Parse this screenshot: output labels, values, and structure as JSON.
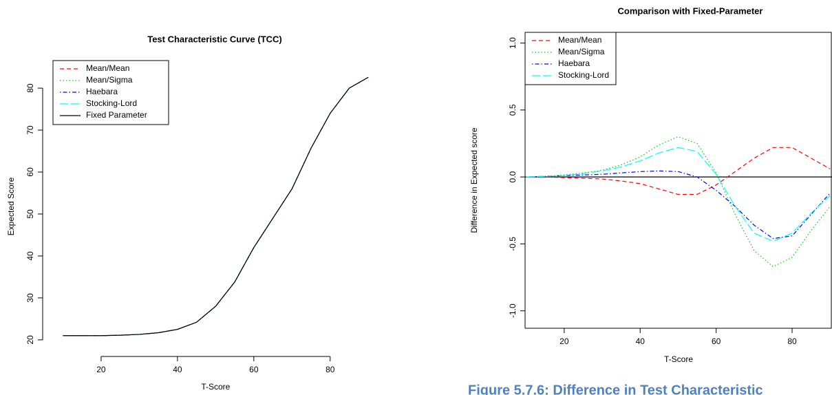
{
  "chart_data": [
    {
      "type": "line",
      "title": "Test Characteristic Curve (TCC)",
      "x_label": "T-Score",
      "y_label": "Expected Score",
      "x": [
        10,
        15,
        20,
        25,
        30,
        35,
        40,
        45,
        50,
        55,
        60,
        65,
        70,
        75,
        80,
        85,
        90
      ],
      "series": [
        {
          "name": "Mean/Mean",
          "color": "#ff0000",
          "linestyle": "dashed",
          "values": [
            21,
            21,
            21,
            21.1,
            21.3,
            21.7,
            22.5,
            24.2,
            28,
            33.8,
            42,
            49,
            56,
            65.7,
            74,
            80,
            82.6
          ]
        },
        {
          "name": "Mean/Sigma",
          "color": "#00cd00",
          "linestyle": "dotted",
          "values": [
            21,
            21,
            21,
            21.1,
            21.3,
            21.7,
            22.5,
            24.2,
            28,
            33.8,
            42,
            49,
            56,
            65.7,
            74,
            80,
            82.6
          ]
        },
        {
          "name": "Haebara",
          "color": "#0000ff",
          "linestyle": "dotdash",
          "values": [
            21,
            21,
            21,
            21.1,
            21.3,
            21.7,
            22.5,
            24.2,
            28,
            33.8,
            42,
            49,
            56,
            65.7,
            74,
            80,
            82.6
          ]
        },
        {
          "name": "Stocking-Lord",
          "color": "#00ffff",
          "linestyle": "longdash",
          "values": [
            21,
            21,
            21,
            21.1,
            21.3,
            21.7,
            22.5,
            24.2,
            28,
            33.8,
            42,
            49,
            56,
            65.7,
            74,
            80,
            82.6
          ]
        },
        {
          "name": "Fixed Parameter",
          "color": "#000000",
          "linestyle": "solid",
          "values": [
            21,
            21,
            21,
            21.1,
            21.3,
            21.7,
            22.5,
            24.2,
            28,
            33.8,
            42,
            49,
            56,
            65.7,
            74,
            80,
            82.6
          ]
        }
      ],
      "xlim": [
        6.8,
        93.2
      ],
      "ylim": [
        18.5,
        85.1
      ],
      "xticks": [
        20,
        40,
        60,
        80
      ],
      "yticks": [
        20,
        30,
        40,
        50,
        60,
        70,
        80
      ],
      "legend": "top-left",
      "box": false
    },
    {
      "type": "line",
      "title": "Comparison with Fixed-Parameter",
      "x_label": "T-Score",
      "y_label": "Difference in Expected score",
      "x": [
        10,
        15,
        20,
        25,
        30,
        35,
        40,
        45,
        50,
        55,
        60,
        65,
        70,
        75,
        80,
        85,
        90
      ],
      "series": [
        {
          "name": "Mean/Mean",
          "color": "#ff0000",
          "linestyle": "dashed",
          "values": [
            0,
            0,
            -0.005,
            -0.01,
            -0.015,
            -0.03,
            -0.05,
            -0.09,
            -0.13,
            -0.13,
            -0.06,
            0.04,
            0.14,
            0.22,
            0.22,
            0.14,
            0.06
          ]
        },
        {
          "name": "Mean/Sigma",
          "color": "#00cd00",
          "linestyle": "dotted",
          "values": [
            0,
            0.005,
            0.015,
            0.03,
            0.05,
            0.09,
            0.15,
            0.24,
            0.3,
            0.25,
            0.03,
            -0.28,
            -0.55,
            -0.67,
            -0.6,
            -0.4,
            -0.22
          ]
        },
        {
          "name": "Haebara",
          "color": "#0000ff",
          "linestyle": "dotdash",
          "values": [
            0,
            0.005,
            0.01,
            0.015,
            0.02,
            0.03,
            0.04,
            0.045,
            0.04,
            0,
            -0.1,
            -0.22,
            -0.36,
            -0.46,
            -0.44,
            -0.28,
            -0.12
          ]
        },
        {
          "name": "Stocking-Lord",
          "color": "#00ffff",
          "linestyle": "longdash",
          "values": [
            0,
            0.005,
            0.01,
            0.025,
            0.045,
            0.075,
            0.12,
            0.18,
            0.22,
            0.19,
            0.02,
            -0.22,
            -0.42,
            -0.48,
            -0.42,
            -0.27,
            -0.14
          ]
        }
      ],
      "xlim": [
        9.7,
        90.5
      ],
      "ylim": [
        -1.13,
        1.08
      ],
      "xticks": [
        20,
        40,
        60,
        80
      ],
      "yticks": [
        {
          "value": -1,
          "label": "-1.0"
        },
        -0.5,
        {
          "value": 0,
          "label": "0.0"
        },
        0.5,
        {
          "value": 1,
          "label": "1.0"
        }
      ],
      "reference_line": 0,
      "legend": "top-left",
      "box": true
    }
  ],
  "caption": "Figure 5.7.6: Difference in Test Characteristic"
}
